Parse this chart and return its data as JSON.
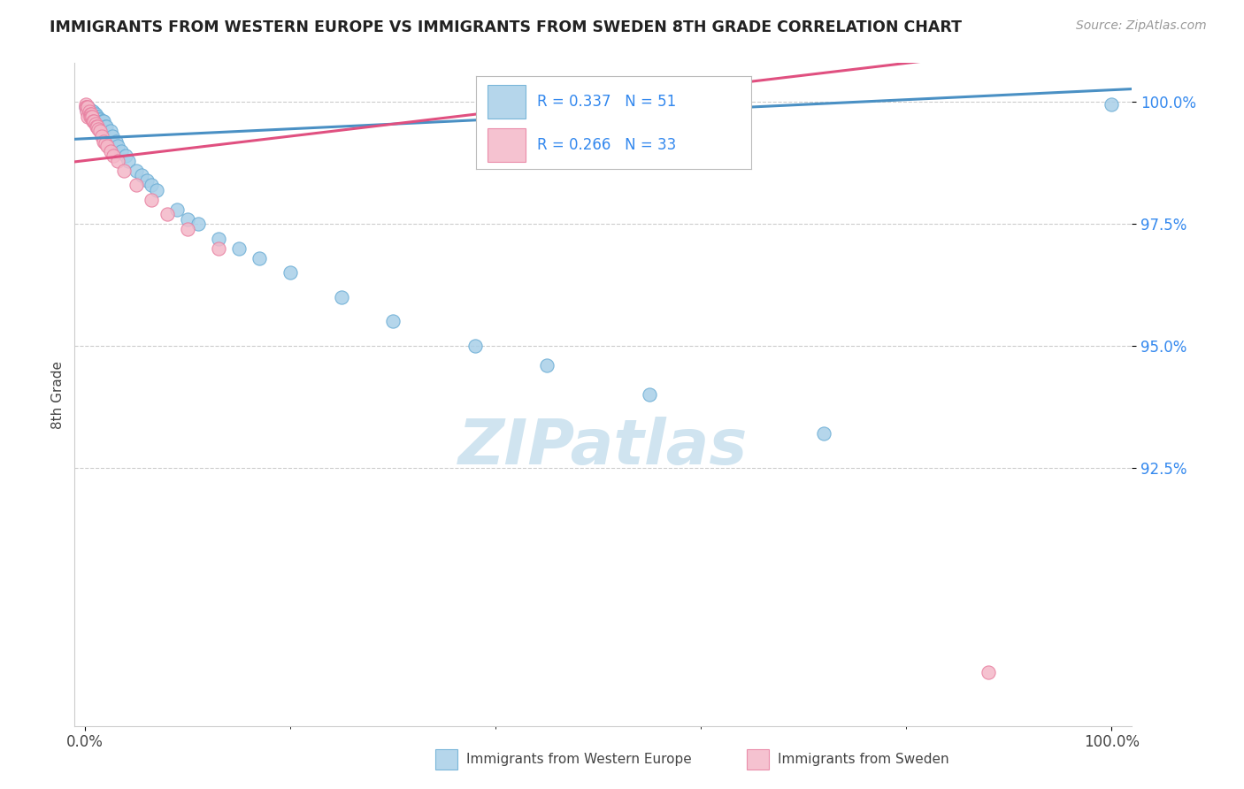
{
  "title": "IMMIGRANTS FROM WESTERN EUROPE VS IMMIGRANTS FROM SWEDEN 8TH GRADE CORRELATION CHART",
  "source_text": "Source: ZipAtlas.com",
  "ylabel": "8th Grade",
  "ytick_labels": [
    "100.0%",
    "97.5%",
    "95.0%",
    "92.5%"
  ],
  "ytick_values": [
    1.0,
    0.975,
    0.95,
    0.925
  ],
  "xlim": [
    -0.01,
    1.02
  ],
  "ylim": [
    0.872,
    1.008
  ],
  "legend_r1": "R = 0.337",
  "legend_n1": "N = 51",
  "legend_r2": "R = 0.266",
  "legend_n2": "N = 33",
  "blue_color": "#a8cfe8",
  "blue_edge": "#6aadd5",
  "pink_color": "#f4b8c8",
  "pink_edge": "#e87fa0",
  "trend_blue": "#4a90c4",
  "trend_pink": "#e05080",
  "blue_scatter_x": [
    0.001,
    0.002,
    0.002,
    0.003,
    0.003,
    0.004,
    0.005,
    0.005,
    0.006,
    0.007,
    0.007,
    0.008,
    0.009,
    0.01,
    0.01,
    0.011,
    0.012,
    0.013,
    0.014,
    0.015,
    0.016,
    0.017,
    0.018,
    0.02,
    0.021,
    0.025,
    0.027,
    0.03,
    0.032,
    0.035,
    0.04,
    0.042,
    0.05,
    0.055,
    0.06,
    0.065,
    0.07,
    0.09,
    0.1,
    0.11,
    0.13,
    0.15,
    0.17,
    0.2,
    0.25,
    0.3,
    0.38,
    0.45,
    0.55,
    0.72,
    1.0
  ],
  "blue_scatter_y": [
    0.999,
    0.9985,
    0.999,
    0.9985,
    0.999,
    0.998,
    0.9985,
    0.998,
    0.998,
    0.998,
    0.9975,
    0.998,
    0.997,
    0.9975,
    0.997,
    0.997,
    0.997,
    0.9965,
    0.9965,
    0.9965,
    0.996,
    0.996,
    0.996,
    0.995,
    0.995,
    0.994,
    0.993,
    0.992,
    0.991,
    0.99,
    0.989,
    0.988,
    0.986,
    0.985,
    0.984,
    0.983,
    0.982,
    0.978,
    0.976,
    0.975,
    0.972,
    0.97,
    0.968,
    0.965,
    0.96,
    0.955,
    0.95,
    0.946,
    0.94,
    0.932,
    0.9995
  ],
  "pink_scatter_x": [
    0.001,
    0.001,
    0.002,
    0.002,
    0.003,
    0.003,
    0.004,
    0.005,
    0.005,
    0.006,
    0.006,
    0.007,
    0.008,
    0.009,
    0.01,
    0.011,
    0.012,
    0.013,
    0.015,
    0.016,
    0.018,
    0.02,
    0.022,
    0.025,
    0.028,
    0.032,
    0.038,
    0.05,
    0.065,
    0.08,
    0.1,
    0.13,
    0.88
  ],
  "pink_scatter_y": [
    0.9995,
    0.999,
    0.999,
    0.998,
    0.999,
    0.997,
    0.998,
    0.9975,
    0.997,
    0.9975,
    0.997,
    0.997,
    0.996,
    0.996,
    0.9955,
    0.995,
    0.995,
    0.9945,
    0.994,
    0.993,
    0.992,
    0.9915,
    0.991,
    0.99,
    0.989,
    0.988,
    0.986,
    0.983,
    0.98,
    0.977,
    0.974,
    0.97,
    0.883
  ],
  "watermark": "ZIPatlas",
  "watermark_color": "#d0e4f0",
  "grid_color": "#cccccc",
  "spine_color": "#cccccc",
  "title_color": "#222222",
  "source_color": "#999999",
  "ylabel_color": "#444444",
  "ytick_color": "#3388ee",
  "xtick_color": "#444444",
  "legend_text_color": "#3388ee"
}
